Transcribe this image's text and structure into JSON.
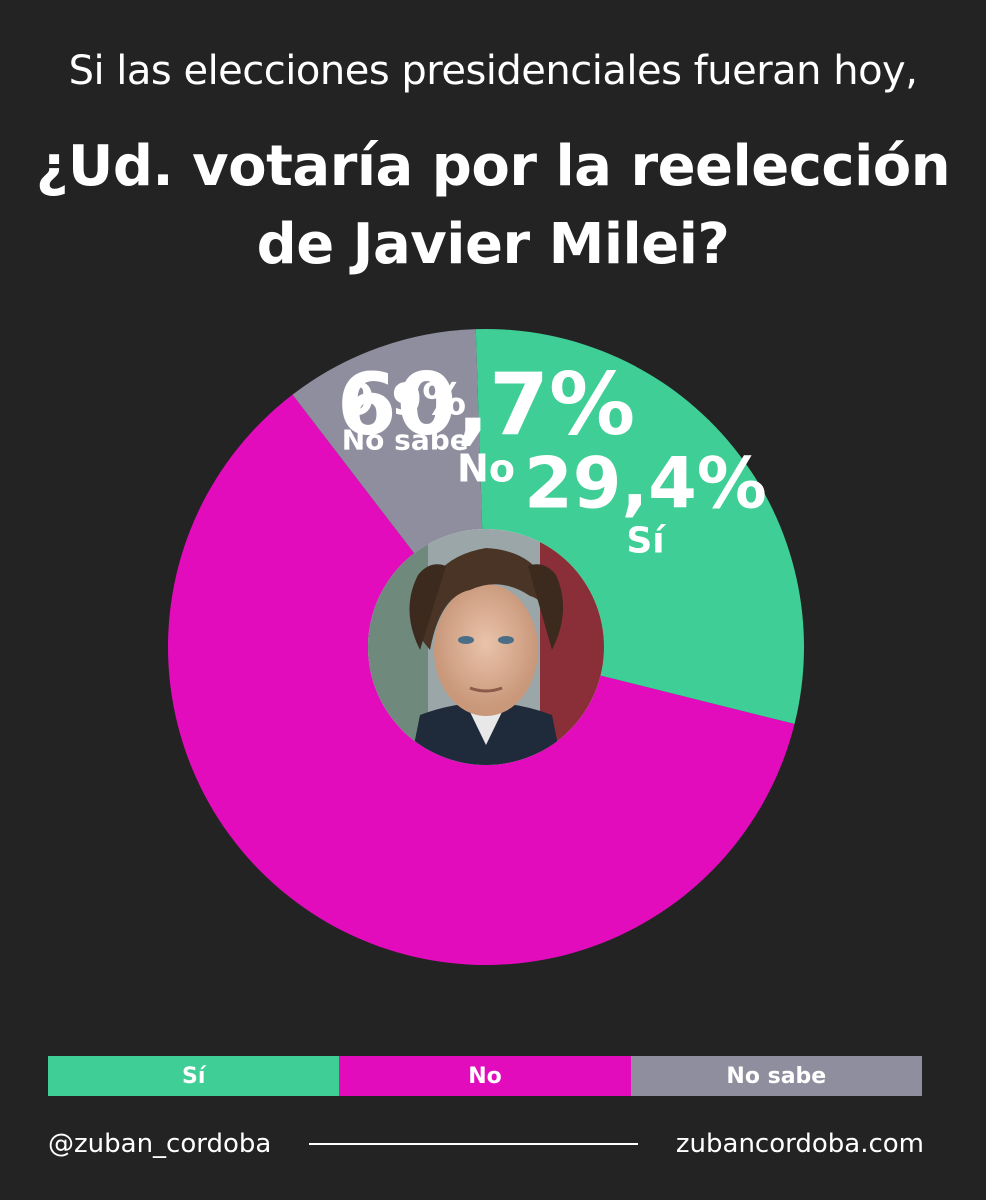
{
  "header": {
    "subtitle": "Si las elecciones presidenciales fueran hoy,",
    "title_line1": "¿Ud. votaría por la reelección",
    "title_line2": "de Javier Milei?"
  },
  "chart_data": {
    "type": "pie",
    "title": "¿Ud. votaría por la reelección de Javier Milei?",
    "subtitle": "Si las elecciones presidenciales fueran hoy,",
    "donut": true,
    "center_image": "portrait-photo",
    "slices": [
      {
        "label": "No",
        "value": 60.7,
        "value_label": "60,7%",
        "color": "#e20cbd"
      },
      {
        "label": "No sabe",
        "value": 9.9,
        "value_label": "9,9%",
        "color": "#8e8e9e"
      },
      {
        "label": "Sí",
        "value": 29.4,
        "value_label": "29,4%",
        "color": "#3fce96"
      }
    ],
    "legend": {
      "placement": "bottom",
      "entries": [
        {
          "label": "Sí",
          "color": "#3fce96"
        },
        {
          "label": "No",
          "color": "#e20cbd"
        },
        {
          "label": "No sabe",
          "color": "#8e8e9e"
        }
      ]
    }
  },
  "footer": {
    "handle": "@zuban_cordoba",
    "website": "zubancordoba.com"
  }
}
